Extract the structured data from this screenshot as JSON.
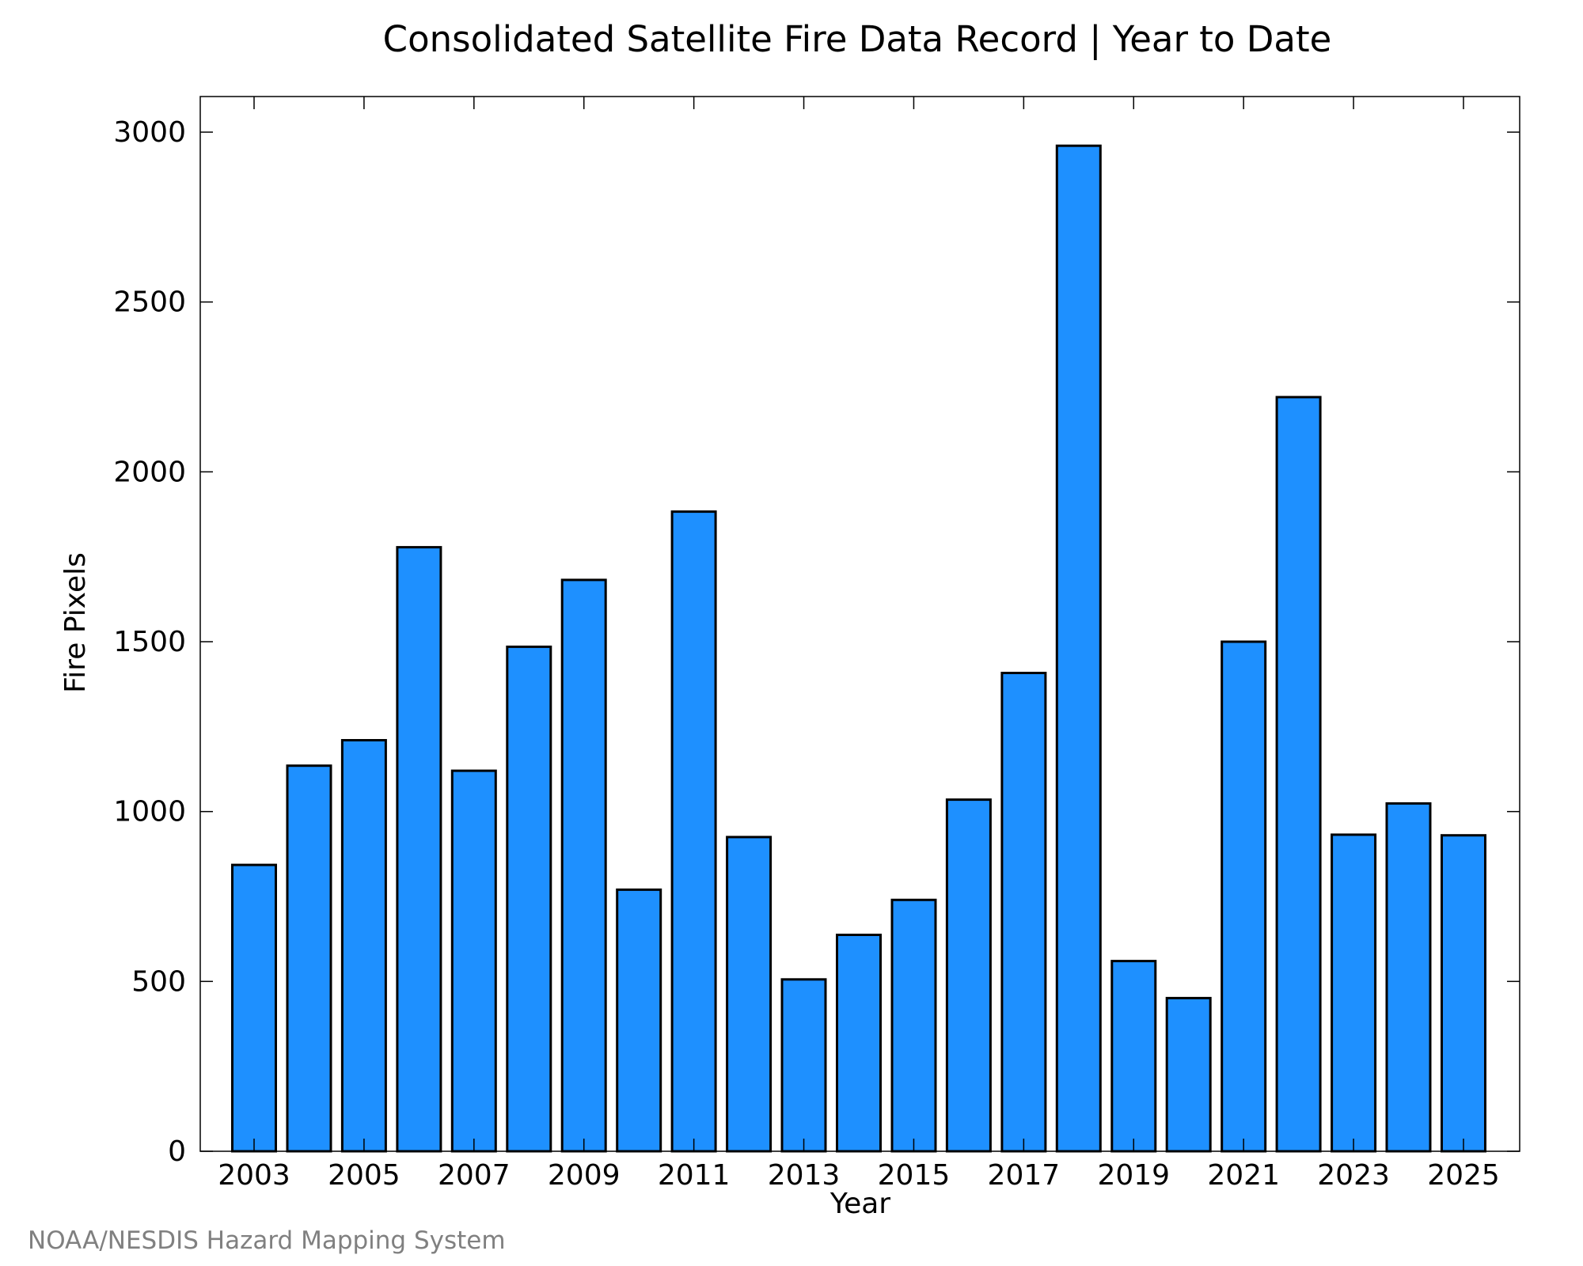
{
  "chart_data": {
    "type": "bar",
    "title": "Consolidated Satellite Fire Data Record | Year to Date",
    "xlabel": "Year",
    "ylabel": "Fire Pixels",
    "categories": [
      "2003",
      "2004",
      "2005",
      "2006",
      "2007",
      "2008",
      "2009",
      "2010",
      "2011",
      "2012",
      "2013",
      "2014",
      "2015",
      "2016",
      "2017",
      "2018",
      "2019",
      "2020",
      "2021",
      "2022",
      "2023",
      "2024",
      "2025"
    ],
    "values": [
      843,
      1135,
      1210,
      1778,
      1120,
      1485,
      1682,
      770,
      1883,
      925,
      506,
      637,
      740,
      1035,
      1408,
      2960,
      560,
      451,
      1500,
      2220,
      932,
      1024,
      930
    ],
    "x_tick_labels": [
      "2003",
      "2005",
      "2007",
      "2009",
      "2011",
      "2013",
      "2015",
      "2017",
      "2019",
      "2021",
      "2023",
      "2025"
    ],
    "y_ticks": [
      0,
      500,
      1000,
      1500,
      2000,
      2500,
      3000
    ],
    "y_tick_labels": [
      "0",
      "500",
      "1000",
      "1500",
      "2000",
      "2500",
      "3000"
    ],
    "ylim": [
      0,
      3105
    ],
    "grid": false,
    "bar_color": "#1e90ff",
    "bar_edge_color": "#000000",
    "credit": "NOAA/NESDIS Hazard Mapping System",
    "credit_color": "#808080"
  }
}
